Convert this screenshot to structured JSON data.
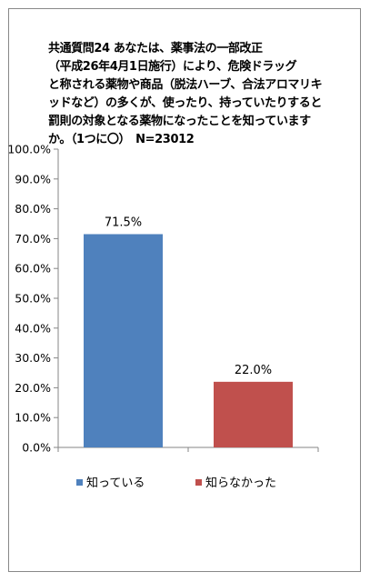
{
  "chart_data": {
    "type": "bar",
    "title": "共通質問24 あなたは、薬事法の一部改正\n（平成26年4月1日施行）により、危険ドラッグ\nと称される薬物や商品（脱法ハーブ、合法アロマリキッドなど）の多くが、使ったり、持っていたりすると罰則の対象となる薬物になったことを知っていますか。（1つに〇）　N=23012",
    "categories": [
      "知っている",
      "知らなかった"
    ],
    "values": [
      71.5,
      22.0
    ],
    "value_labels": [
      "71.5%",
      "22.0%"
    ],
    "colors": [
      "#4f81bd",
      "#c0504d"
    ],
    "ylim": [
      0,
      100
    ],
    "yticks": [
      "0.0%",
      "10.0%",
      "20.0%",
      "30.0%",
      "40.0%",
      "50.0%",
      "60.0%",
      "70.0%",
      "80.0%",
      "90.0%",
      "100.0%"
    ],
    "xlabel": "",
    "ylabel": "",
    "grid": false,
    "legend_position": "bottom",
    "legend": [
      {
        "label": "知っている",
        "color": "#4f81bd"
      },
      {
        "label": "知らなかった",
        "color": "#c0504d"
      }
    ]
  }
}
